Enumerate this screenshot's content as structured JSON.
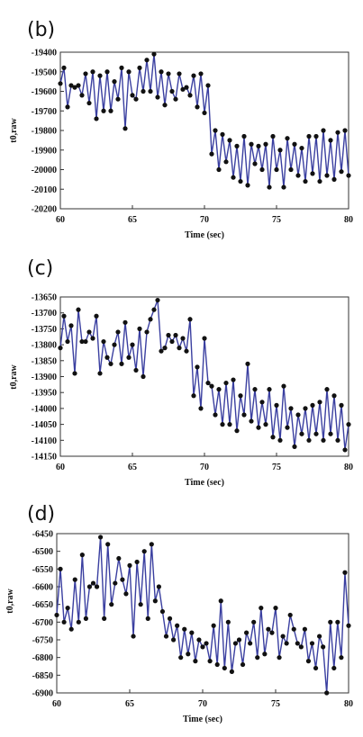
{
  "chart_data": [
    {
      "panel_label": "(b)",
      "type": "line",
      "ylabel": "t0,raw",
      "xlabel": "Time (sec)",
      "xlim": [
        60,
        80
      ],
      "ylim": [
        -20200,
        -19400
      ],
      "xticks": [
        60,
        65,
        70,
        75,
        80
      ],
      "yticks": [
        -19400,
        -19500,
        -19600,
        -19700,
        -19800,
        -19900,
        -20000,
        -20100,
        -20200
      ],
      "grid": false,
      "series": [
        {
          "x": [
            60.0,
            60.25,
            60.5,
            60.75,
            61.0,
            61.25,
            61.5,
            61.75,
            62.0,
            62.25,
            62.5,
            62.75,
            63.0,
            63.25,
            63.5,
            63.75,
            64.0,
            64.25,
            64.5,
            64.75,
            65.0,
            65.25,
            65.5,
            65.75,
            66.0,
            66.25,
            66.5,
            66.75,
            67.0,
            67.25,
            67.5,
            67.75,
            68.0,
            68.25,
            68.5,
            68.75,
            69.0,
            69.25,
            69.5,
            69.75,
            70.0,
            70.25,
            70.5,
            70.75,
            71.0,
            71.25,
            71.5,
            71.75,
            72.0,
            72.25,
            72.5,
            72.75,
            73.0,
            73.25,
            73.5,
            73.75,
            74.0,
            74.25,
            74.5,
            74.75,
            75.0,
            75.25,
            75.5,
            75.75,
            76.0,
            76.25,
            76.5,
            76.75,
            77.0,
            77.25,
            77.5,
            77.75,
            78.0,
            78.25,
            78.5,
            78.75,
            79.0,
            79.25,
            79.5,
            79.75,
            80.0
          ],
          "values": [
            -19560,
            -19480,
            -19680,
            -19570,
            -19580,
            -19570,
            -19620,
            -19510,
            -19660,
            -19500,
            -19740,
            -19520,
            -19700,
            -19500,
            -19700,
            -19550,
            -19640,
            -19480,
            -19790,
            -19500,
            -19620,
            -19640,
            -19480,
            -19600,
            -19440,
            -19600,
            -19410,
            -19630,
            -19500,
            -19670,
            -19510,
            -19600,
            -19640,
            -19510,
            -19590,
            -19580,
            -19620,
            -19520,
            -19680,
            -19510,
            -19710,
            -19570,
            -19920,
            -19800,
            -20000,
            -19820,
            -19960,
            -19850,
            -20040,
            -19880,
            -20060,
            -19830,
            -20080,
            -19870,
            -19970,
            -19880,
            -20000,
            -19870,
            -20090,
            -19830,
            -20000,
            -19900,
            -20090,
            -19840,
            -20000,
            -19870,
            -20030,
            -19890,
            -20060,
            -19830,
            -20020,
            -19830,
            -20060,
            -19800,
            -20030,
            -19850,
            -20050,
            -19810,
            -20010,
            -19800,
            -20030
          ]
        }
      ]
    },
    {
      "panel_label": "(c)",
      "type": "line",
      "ylabel": "t0,raw",
      "xlabel": "Time (sec)",
      "xlim": [
        60,
        80
      ],
      "ylim": [
        -14150,
        -13650
      ],
      "xticks": [
        60,
        65,
        70,
        75,
        80
      ],
      "yticks": [
        -13650,
        -13700,
        -13750,
        -13800,
        -13850,
        -13900,
        -13950,
        -14000,
        -14050,
        -14100,
        -14150
      ],
      "grid": false,
      "series": [
        {
          "x": [
            60.0,
            60.25,
            60.5,
            60.75,
            61.0,
            61.25,
            61.5,
            61.75,
            62.0,
            62.25,
            62.5,
            62.75,
            63.0,
            63.25,
            63.5,
            63.75,
            64.0,
            64.25,
            64.5,
            64.75,
            65.0,
            65.25,
            65.5,
            65.75,
            66.0,
            66.25,
            66.5,
            66.75,
            67.0,
            67.25,
            67.5,
            67.75,
            68.0,
            68.25,
            68.5,
            68.75,
            69.0,
            69.25,
            69.5,
            69.75,
            70.0,
            70.25,
            70.5,
            70.75,
            71.0,
            71.25,
            71.5,
            71.75,
            72.0,
            72.25,
            72.5,
            72.75,
            73.0,
            73.25,
            73.5,
            73.75,
            74.0,
            74.25,
            74.5,
            74.75,
            75.0,
            75.25,
            75.5,
            75.75,
            76.0,
            76.25,
            76.5,
            76.75,
            77.0,
            77.25,
            77.5,
            77.75,
            78.0,
            78.25,
            78.5,
            78.75,
            79.0,
            79.25,
            79.5,
            79.75,
            80.0
          ],
          "values": [
            -13810,
            -13710,
            -13790,
            -13740,
            -13890,
            -13690,
            -13790,
            -13790,
            -13760,
            -13780,
            -13710,
            -13890,
            -13790,
            -13840,
            -13860,
            -13800,
            -13760,
            -13860,
            -13730,
            -13840,
            -13800,
            -13880,
            -13750,
            -13900,
            -13760,
            -13720,
            -13690,
            -13660,
            -13820,
            -13810,
            -13770,
            -13790,
            -13770,
            -13810,
            -13780,
            -13820,
            -13720,
            -13960,
            -13870,
            -14000,
            -13780,
            -13920,
            -13930,
            -14020,
            -13940,
            -14050,
            -13920,
            -14050,
            -13910,
            -14070,
            -13960,
            -14020,
            -13860,
            -14040,
            -13940,
            -14060,
            -13980,
            -14050,
            -13940,
            -14090,
            -13990,
            -14100,
            -13930,
            -14060,
            -14000,
            -14120,
            -14020,
            -14080,
            -14000,
            -14100,
            -13990,
            -14080,
            -13980,
            -14100,
            -13940,
            -14080,
            -13960,
            -14100,
            -13990,
            -14130,
            -14050
          ]
        }
      ]
    },
    {
      "panel_label": "(d)",
      "type": "line",
      "ylabel": "t0,raw",
      "xlabel": "Time (sec)",
      "xlim": [
        60,
        80
      ],
      "ylim": [
        -6900,
        -6450
      ],
      "xticks": [
        60,
        65,
        70,
        75,
        80
      ],
      "yticks": [
        -6450,
        -6500,
        -6550,
        -6600,
        -6650,
        -6700,
        -6750,
        -6800,
        -6850,
        -6900
      ],
      "grid": false,
      "series": [
        {
          "x": [
            60.0,
            60.25,
            60.5,
            60.75,
            61.0,
            61.25,
            61.5,
            61.75,
            62.0,
            62.25,
            62.5,
            62.75,
            63.0,
            63.25,
            63.5,
            63.75,
            64.0,
            64.25,
            64.5,
            64.75,
            65.0,
            65.25,
            65.5,
            65.75,
            66.0,
            66.25,
            66.5,
            66.75,
            67.0,
            67.25,
            67.5,
            67.75,
            68.0,
            68.25,
            68.5,
            68.75,
            69.0,
            69.25,
            69.5,
            69.75,
            70.0,
            70.25,
            70.5,
            70.75,
            71.0,
            71.25,
            71.5,
            71.75,
            72.0,
            72.25,
            72.5,
            72.75,
            73.0,
            73.25,
            73.5,
            73.75,
            74.0,
            74.25,
            74.5,
            74.75,
            75.0,
            75.25,
            75.5,
            75.75,
            76.0,
            76.25,
            76.5,
            76.75,
            77.0,
            77.25,
            77.5,
            77.75,
            78.0,
            78.25,
            78.5,
            78.75,
            79.0,
            79.25,
            79.5,
            79.75,
            80.0
          ],
          "values": [
            -6680,
            -6550,
            -6700,
            -6660,
            -6720,
            -6580,
            -6700,
            -6510,
            -6690,
            -6600,
            -6590,
            -6600,
            -6460,
            -6690,
            -6480,
            -6650,
            -6590,
            -6520,
            -6580,
            -6620,
            -6540,
            -6740,
            -6530,
            -6650,
            -6500,
            -6690,
            -6480,
            -6640,
            -6600,
            -6670,
            -6740,
            -6690,
            -6750,
            -6710,
            -6800,
            -6720,
            -6790,
            -6730,
            -6810,
            -6750,
            -6770,
            -6760,
            -6810,
            -6710,
            -6820,
            -6640,
            -6830,
            -6700,
            -6840,
            -6760,
            -6750,
            -6820,
            -6730,
            -6760,
            -6700,
            -6800,
            -6660,
            -6790,
            -6720,
            -6730,
            -6660,
            -6800,
            -6740,
            -6760,
            -6680,
            -6720,
            -6760,
            -6770,
            -6720,
            -6810,
            -6760,
            -6830,
            -6740,
            -6770,
            -6900,
            -6700,
            -6830,
            -6700,
            -6800,
            -6560,
            -6710
          ]
        }
      ]
    }
  ]
}
